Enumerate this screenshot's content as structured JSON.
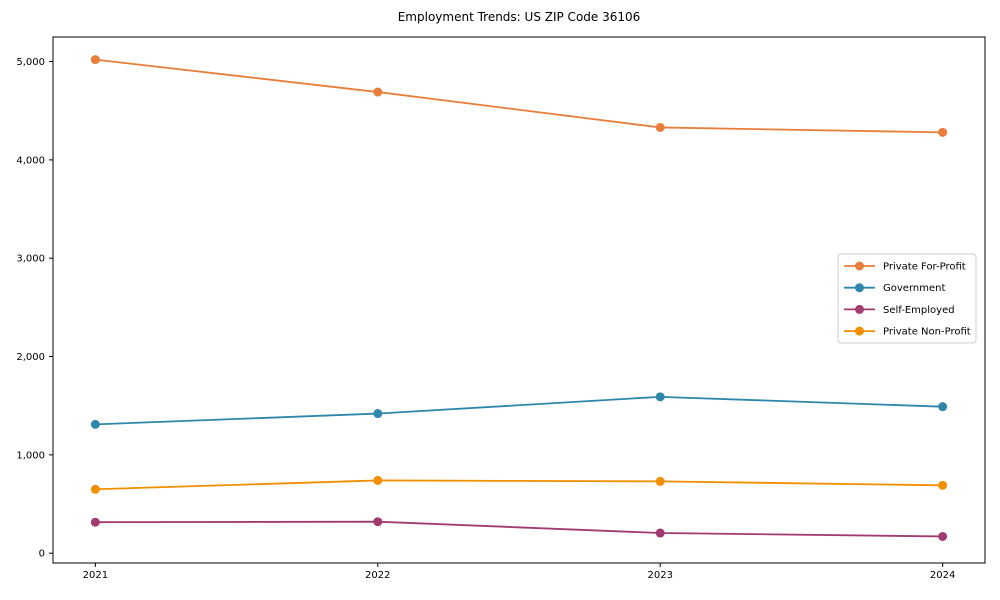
{
  "figure": {
    "background_color": "#ffffff",
    "axis_color": "#000000"
  },
  "chart_data": {
    "type": "line",
    "title": "Employment Trends: US ZIP Code 36106",
    "xlabel": "",
    "ylabel": "",
    "x": [
      2021,
      2022,
      2023,
      2024
    ],
    "x_tick_labels": [
      "2021",
      "2022",
      "2023",
      "2024"
    ],
    "y_ticks": [
      0,
      1000,
      2000,
      3000,
      4000,
      5000
    ],
    "y_tick_labels": [
      "0",
      "1,000",
      "2,000",
      "3,000",
      "4,000",
      "5,000"
    ],
    "xlim": [
      2020.85,
      2024.15
    ],
    "ylim": [
      -100,
      5250
    ],
    "grid": false,
    "marker": "circle",
    "legend_position": "center right",
    "series": [
      {
        "name": "Private For-Profit",
        "color": "#E87E3A",
        "values": [
          5020,
          4690,
          4330,
          4280
        ]
      },
      {
        "name": "Government",
        "color": "#2E86AB",
        "values": [
          1310,
          1420,
          1590,
          1490
        ]
      },
      {
        "name": "Self-Employed",
        "color": "#A23B72",
        "values": [
          315,
          320,
          205,
          170
        ]
      },
      {
        "name": "Private Non-Profit",
        "color": "#F18F01",
        "values": [
          650,
          740,
          730,
          690
        ]
      }
    ]
  }
}
